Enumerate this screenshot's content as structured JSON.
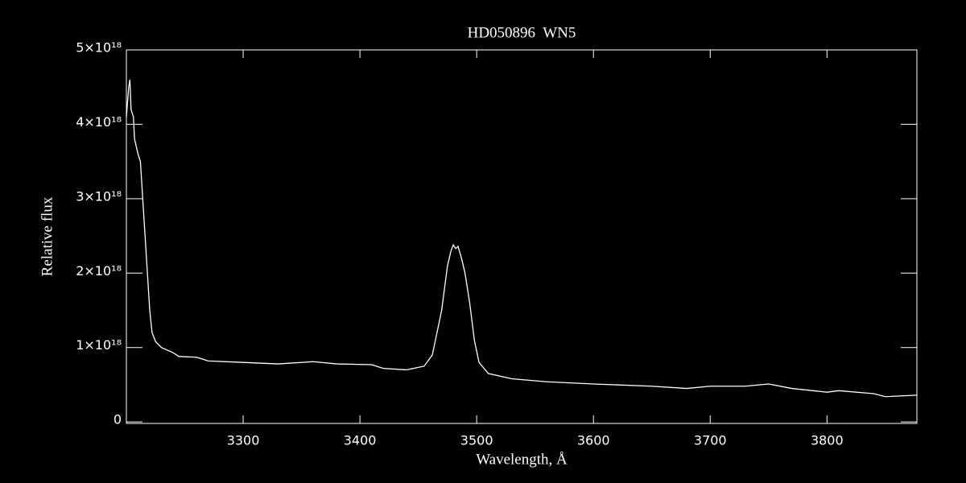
{
  "chart_data": {
    "type": "line",
    "title": "HD050896  WN5",
    "x_label": "Wavelength, Å",
    "y_label": "Relative flux",
    "x": [
      3200,
      3202,
      3203,
      3204,
      3205,
      3206,
      3207,
      3210,
      3212,
      3214,
      3216,
      3218,
      3220,
      3222,
      3225,
      3230,
      3240,
      3245,
      3260,
      3270,
      3300,
      3330,
      3360,
      3380,
      3410,
      3420,
      3440,
      3455,
      3462,
      3470,
      3475,
      3478,
      3480,
      3482,
      3484,
      3487,
      3490,
      3494,
      3498,
      3502,
      3510,
      3530,
      3560,
      3600,
      3650,
      3680,
      3700,
      3730,
      3750,
      3770,
      3800,
      3810,
      3840,
      3850,
      3877
    ],
    "series": [
      {
        "name": "HD050896",
        "color": "#ffffff",
        "values": [
          4.1e+18,
          4.5e+18,
          4.6e+18,
          4.2e+18,
          4.15e+18,
          4.1e+18,
          3.8e+18,
          3.6e+18,
          3.5e+18,
          3e+18,
          2.5e+18,
          2e+18,
          1.5e+18,
          1.2e+18,
          1.08e+18,
          1e+18,
          9.3e+17,
          8.8e+17,
          8.7e+17,
          8.2e+17,
          8e+17,
          7.8e+17,
          8.1e+17,
          7.8e+17,
          7.7e+17,
          7.2e+17,
          7e+17,
          7.5e+17,
          9e+17,
          1.5e+18,
          2.1e+18,
          2.3e+18,
          2.38e+18,
          2.33e+18,
          2.36e+18,
          2.2e+18,
          2e+18,
          1.6e+18,
          1.1e+18,
          8e+17,
          6.5e+17,
          5.8e+17,
          5.4e+17,
          5.1e+17,
          4.8e+17,
          4.5e+17,
          4.8e+17,
          4.8e+17,
          5.1e+17,
          4.5e+17,
          4e+17,
          4.2e+17,
          3.8e+17,
          3.4e+17,
          3.6e+17
        ]
      }
    ],
    "xlim": [
      3200,
      3877
    ],
    "xticks": [
      3300,
      3400,
      3500,
      3600,
      3700,
      3800
    ],
    "ylim": [
      -2e+16,
      5e+18
    ],
    "yticks": [
      0,
      {
        "value": 1e+18,
        "label": "1×10¹⁸"
      },
      {
        "value": 2e+18,
        "label": "2×10¹⁸"
      },
      {
        "value": 3e+18,
        "label": "3×10¹⁸"
      },
      {
        "value": 4e+18,
        "label": "4×10¹⁸"
      },
      {
        "value": 5e+18,
        "label": "5×10¹⁸"
      }
    ]
  }
}
